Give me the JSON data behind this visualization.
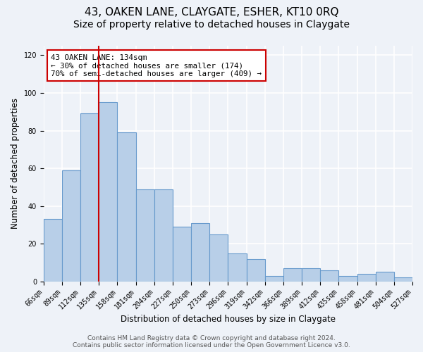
{
  "title": "43, OAKEN LANE, CLAYGATE, ESHER, KT10 0RQ",
  "subtitle": "Size of property relative to detached houses in Claygate",
  "xlabel": "Distribution of detached houses by size in Claygate",
  "ylabel": "Number of detached properties",
  "bar_values": [
    33,
    59,
    89,
    95,
    79,
    49,
    49,
    29,
    31,
    25,
    15,
    12,
    3,
    7,
    7,
    6,
    3,
    4,
    5,
    2
  ],
  "xlabels": [
    "66sqm",
    "89sqm",
    "112sqm",
    "135sqm",
    "158sqm",
    "181sqm",
    "204sqm",
    "227sqm",
    "250sqm",
    "273sqm",
    "296sqm",
    "319sqm",
    "342sqm",
    "366sqm",
    "389sqm",
    "412sqm",
    "435sqm",
    "458sqm",
    "481sqm",
    "504sqm",
    "527sqm"
  ],
  "bar_color": "#b8cfe8",
  "bar_edge_color": "#6699cc",
  "vline_x": 3,
  "vline_color": "#cc0000",
  "ylim": [
    0,
    125
  ],
  "yticks": [
    0,
    20,
    40,
    60,
    80,
    100,
    120
  ],
  "annotation_title": "43 OAKEN LANE: 134sqm",
  "annotation_line1": "← 30% of detached houses are smaller (174)",
  "annotation_line2": "70% of semi-detached houses are larger (409) →",
  "annotation_box_color": "#ffffff",
  "annotation_box_edge": "#cc0000",
  "footer_line1": "Contains HM Land Registry data © Crown copyright and database right 2024.",
  "footer_line2": "Contains public sector information licensed under the Open Government Licence v3.0.",
  "bg_color": "#eef2f8",
  "grid_color": "#ffffff",
  "title_fontsize": 11,
  "subtitle_fontsize": 10,
  "axis_label_fontsize": 8.5,
  "tick_fontsize": 7,
  "footer_fontsize": 6.5
}
